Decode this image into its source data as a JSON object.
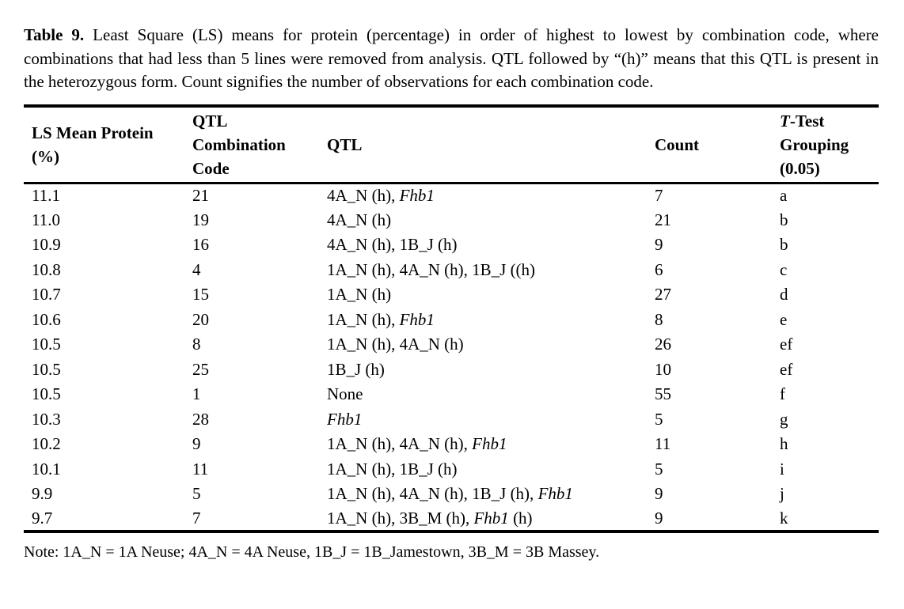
{
  "caption": {
    "label": "Table 9.",
    "body": " Least Square (LS) means for protein (percentage) in order of highest to lowest by combination code, where combinations that had less than 5 lines were removed from analysis. QTL followed by “(h)” means that this QTL is present in the heterozygous form. Count signifies the number of observations for each combination code."
  },
  "table": {
    "columns": [
      {
        "key": "ls_mean",
        "label": [
          {
            "t": "LS Mean Protein (%)"
          }
        ]
      },
      {
        "key": "code",
        "label": [
          {
            "t": "QTL Combination Code"
          }
        ]
      },
      {
        "key": "qtl",
        "label": [
          {
            "t": "QTL"
          }
        ]
      },
      {
        "key": "count",
        "label": [
          {
            "t": "Count"
          }
        ]
      },
      {
        "key": "grouping",
        "label": [
          {
            "t": "T",
            "i": true
          },
          {
            "t": "-Test Grouping (0.05)"
          }
        ]
      }
    ],
    "rows": [
      {
        "ls_mean": "11.1",
        "code": "21",
        "qtl": [
          {
            "t": "4A_N (h), "
          },
          {
            "t": "Fhb1",
            "i": true
          }
        ],
        "count": "7",
        "grouping": "a"
      },
      {
        "ls_mean": "11.0",
        "code": "19",
        "qtl": [
          {
            "t": "4A_N (h)"
          }
        ],
        "count": "21",
        "grouping": "b"
      },
      {
        "ls_mean": "10.9",
        "code": "16",
        "qtl": [
          {
            "t": "4A_N (h), 1B_J (h)"
          }
        ],
        "count": "9",
        "grouping": "b"
      },
      {
        "ls_mean": "10.8",
        "code": "4",
        "qtl": [
          {
            "t": "1A_N (h), 4A_N (h), 1B_J ((h)"
          }
        ],
        "count": "6",
        "grouping": "c"
      },
      {
        "ls_mean": "10.7",
        "code": "15",
        "qtl": [
          {
            "t": "1A_N (h)"
          }
        ],
        "count": "27",
        "grouping": "d"
      },
      {
        "ls_mean": "10.6",
        "code": "20",
        "qtl": [
          {
            "t": "1A_N (h), "
          },
          {
            "t": "Fhb1",
            "i": true
          }
        ],
        "count": "8",
        "grouping": "e"
      },
      {
        "ls_mean": "10.5",
        "code": "8",
        "qtl": [
          {
            "t": "1A_N (h), 4A_N (h)"
          }
        ],
        "count": "26",
        "grouping": "ef"
      },
      {
        "ls_mean": "10.5",
        "code": "25",
        "qtl": [
          {
            "t": "1B_J (h)"
          }
        ],
        "count": "10",
        "grouping": "ef"
      },
      {
        "ls_mean": "10.5",
        "code": "1",
        "qtl": [
          {
            "t": "None"
          }
        ],
        "count": "55",
        "grouping": "f"
      },
      {
        "ls_mean": "10.3",
        "code": "28",
        "qtl": [
          {
            "t": "Fhb1",
            "i": true
          }
        ],
        "count": "5",
        "grouping": "g"
      },
      {
        "ls_mean": "10.2",
        "code": "9",
        "qtl": [
          {
            "t": "1A_N (h), 4A_N (h), "
          },
          {
            "t": "Fhb1",
            "i": true
          }
        ],
        "count": "11",
        "grouping": "h"
      },
      {
        "ls_mean": "10.1",
        "code": "11",
        "qtl": [
          {
            "t": "1A_N (h), 1B_J (h)"
          }
        ],
        "count": "5",
        "grouping": "i"
      },
      {
        "ls_mean": "9.9",
        "code": "5",
        "qtl": [
          {
            "t": "1A_N (h), 4A_N (h), 1B_J (h), "
          },
          {
            "t": "Fhb1",
            "i": true
          }
        ],
        "count": "9",
        "grouping": "j"
      },
      {
        "ls_mean": "9.7",
        "code": "7",
        "qtl": [
          {
            "t": "1A_N (h), 3B_M (h), "
          },
          {
            "t": "Fhb1",
            "i": true
          },
          {
            "t": " (h)"
          }
        ],
        "count": "9",
        "grouping": "k"
      }
    ]
  },
  "note": "Note: 1A_N = 1A Neuse; 4A_N = 4A Neuse, 1B_J = 1B_Jamestown, 3B_M = 3B Massey."
}
